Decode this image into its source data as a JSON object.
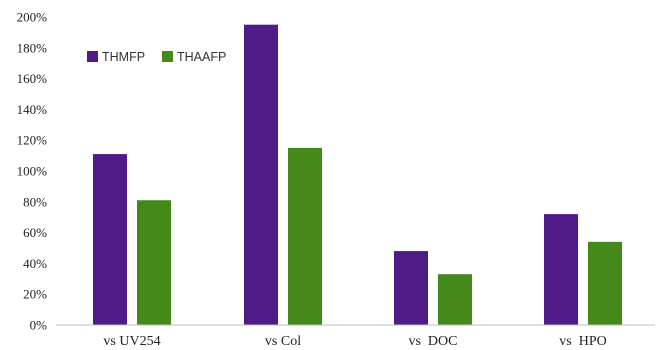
{
  "chart_data": {
    "type": "bar",
    "categories": [
      "vs UV254",
      "vs Col",
      "vs  DOC",
      "vs  HPO"
    ],
    "series": [
      {
        "name": "THMFP",
        "color": "#4f1b86",
        "values": [
          111,
          195,
          48,
          72
        ]
      },
      {
        "name": "THAAFP",
        "color": "#45891b",
        "values": [
          81,
          115,
          33,
          54
        ]
      }
    ],
    "ylim": [
      0,
      200
    ],
    "y_ticks": [
      0,
      20,
      40,
      60,
      80,
      100,
      120,
      140,
      160,
      180,
      200
    ],
    "y_tick_labels": [
      "0%",
      "20%",
      "40%",
      "60%",
      "80%",
      "100%",
      "120%",
      "140%",
      "160%",
      "180%",
      "200%"
    ],
    "grid": false,
    "legend_position": "top-left"
  }
}
